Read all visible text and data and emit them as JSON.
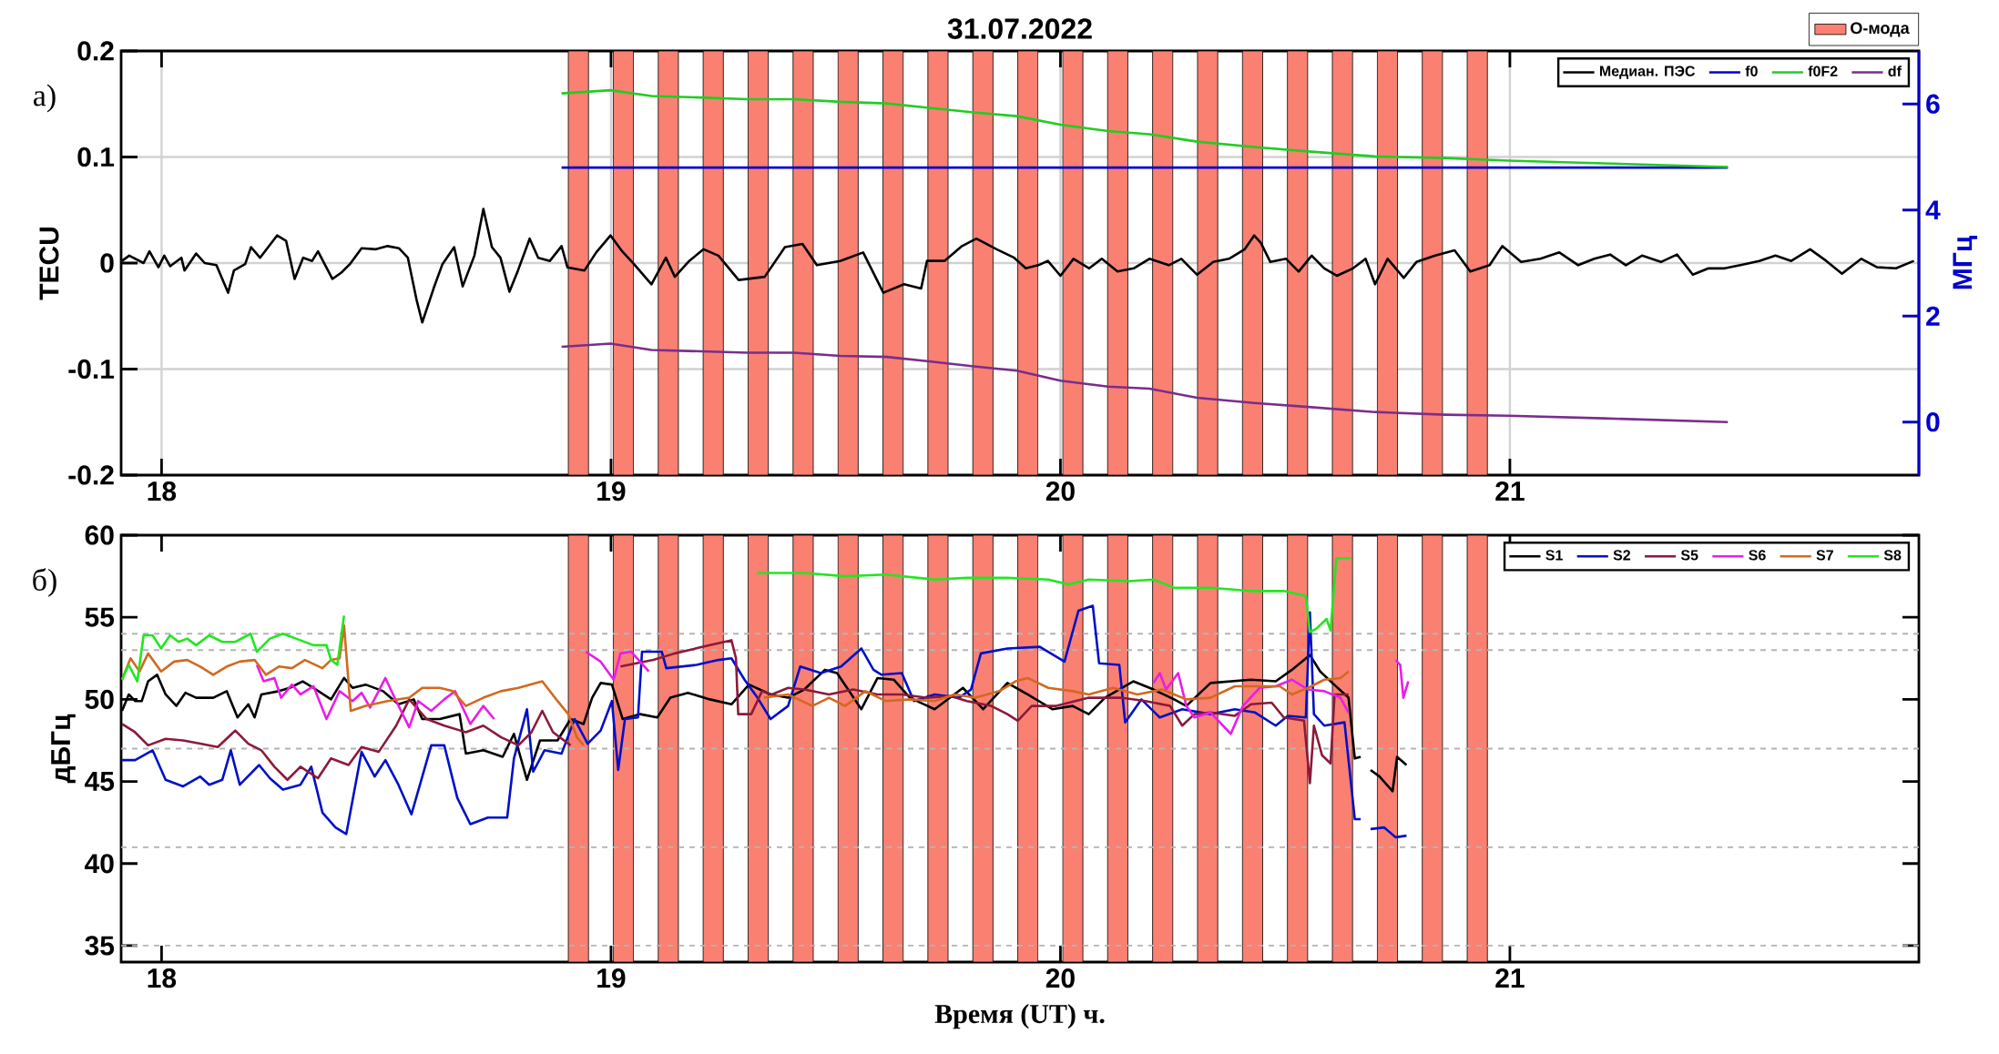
{
  "chart_data": [
    {
      "type": "line",
      "title": "31.07.2022",
      "ylabel": "TECU",
      "y2label": "МГц",
      "xlim": [
        17.91,
        21.91
      ],
      "xticks": [
        18,
        19,
        20,
        21
      ],
      "ylim": [
        -0.2,
        0.2
      ],
      "yticks": [
        -0.2,
        -0.1,
        0,
        0.1,
        0.2
      ],
      "y2lim": [
        -1,
        7
      ],
      "y2ticks": [
        0,
        2,
        4,
        6
      ],
      "grid": true,
      "legend": "top right",
      "annotations": [
        "а)"
      ],
      "series": [
        {
          "name": "Медиан. ПЭС",
          "color": "#000000",
          "x": [
            17.912,
            17.928,
            17.96,
            17.973,
            17.993,
            18.006,
            18.019,
            18.044,
            18.051,
            18.077,
            18.096,
            18.122,
            18.148,
            18.161,
            18.186,
            18.199,
            18.219,
            18.257,
            18.277,
            18.296,
            18.315,
            18.335,
            18.348,
            18.38,
            18.4,
            18.419,
            18.445,
            18.477,
            18.503,
            18.528,
            18.548,
            18.567,
            18.58,
            18.606,
            18.625,
            18.651,
            18.67,
            18.696,
            18.716,
            18.735,
            18.754,
            18.774,
            18.793,
            18.819,
            18.838,
            18.864,
            18.89,
            18.903,
            18.941,
            18.967,
            18.999,
            19.025,
            19.051,
            19.09,
            19.122,
            19.142,
            19.174,
            19.206,
            19.239,
            19.284,
            19.342,
            19.387,
            19.426,
            19.458,
            19.51,
            19.561,
            19.606,
            19.652,
            19.69,
            19.703,
            19.742,
            19.781,
            19.813,
            19.858,
            19.897,
            19.923,
            19.951,
            19.972,
            20.0,
            20.029,
            20.064,
            20.092,
            20.127,
            20.163,
            20.198,
            20.241,
            20.269,
            20.304,
            20.34,
            20.375,
            20.41,
            20.431,
            20.446,
            20.467,
            20.502,
            20.53,
            20.559,
            20.587,
            20.615,
            20.651,
            20.679,
            20.7,
            20.728,
            20.764,
            20.792,
            20.834,
            20.877,
            20.912,
            20.955,
            20.983,
            21.025,
            21.068,
            21.11,
            21.152,
            21.188,
            21.223,
            21.258,
            21.294,
            21.336,
            21.372,
            21.407,
            21.442,
            21.478,
            21.513,
            21.555,
            21.591,
            21.626,
            21.668,
            21.704,
            21.739,
            21.782,
            21.817,
            21.859,
            21.899
          ],
          "values": [
            0.002,
            0.007,
            0,
            0.011,
            -0.004,
            0.007,
            -0.003,
            0.005,
            -0.007,
            0.009,
            0,
            -0.002,
            -0.028,
            -0.007,
            -0.001,
            0.015,
            0.005,
            0.026,
            0.021,
            -0.015,
            0.005,
            0.002,
            0.011,
            -0.015,
            -0.009,
            -0.001,
            0.014,
            0.013,
            0.016,
            0.014,
            0.005,
            -0.034,
            -0.056,
            -0.023,
            -0.001,
            0.015,
            -0.022,
            0.007,
            0.051,
            0.015,
            0.005,
            -0.027,
            -0.007,
            0.023,
            0.005,
            0.002,
            0.016,
            -0.004,
            -0.007,
            0.01,
            0.026,
            0.011,
            -0.001,
            -0.02,
            0.005,
            -0.013,
            0.002,
            0.013,
            0.007,
            -0.016,
            -0.013,
            0.015,
            0.018,
            -0.002,
            0.002,
            0.01,
            -0.028,
            -0.02,
            -0.024,
            0.002,
            0.002,
            0.016,
            0.023,
            0.013,
            0.005,
            -0.005,
            -0.002,
            0.002,
            -0.012,
            0.004,
            -0.005,
            0.004,
            -0.008,
            -0.005,
            0.004,
            -0.002,
            0.004,
            -0.011,
            0.001,
            0.004,
            0.013,
            0.026,
            0.019,
            0.001,
            0.004,
            -0.008,
            0.007,
            -0.005,
            -0.012,
            -0.005,
            0.004,
            -0.02,
            0.004,
            -0.014,
            0.001,
            0.007,
            0.012,
            -0.008,
            -0.002,
            0.016,
            0.001,
            0.004,
            0.01,
            -0.002,
            0.004,
            0.008,
            -0.002,
            0.007,
            0.001,
            0.008,
            -0.011,
            -0.005,
            -0.005,
            -0.002,
            0.002,
            0.007,
            0.002,
            0.013,
            0.002,
            -0.01,
            0.004,
            -0.004,
            -0.005,
            0.002
          ]
        },
        {
          "name": "f0",
          "color": "#0000cc",
          "axis": "y2",
          "x": [
            18.89,
            21.485
          ],
          "values": [
            4.8,
            4.8
          ]
        },
        {
          "name": "f0F2",
          "color": "#22cc22",
          "axis": "y2",
          "x": [
            18.89,
            18.999,
            19.09,
            19.174,
            19.303,
            19.406,
            19.51,
            19.613,
            19.703,
            19.807,
            19.903,
            20.0,
            20.106,
            20.198,
            20.304,
            20.431,
            20.545,
            20.7,
            20.856,
            20.997,
            21.209,
            21.485
          ],
          "values": [
            6.2,
            6.26,
            6.15,
            6.13,
            6.09,
            6.09,
            6.04,
            6.01,
            5.93,
            5.84,
            5.77,
            5.61,
            5.49,
            5.43,
            5.29,
            5.19,
            5.11,
            5.01,
            4.98,
            4.93,
            4.88,
            4.81
          ]
        },
        {
          "name": "df",
          "color": "#7b2d8b",
          "axis": "y2",
          "x": [
            18.89,
            18.999,
            19.09,
            19.303,
            19.406,
            19.51,
            19.613,
            19.703,
            19.807,
            19.903,
            20.0,
            20.106,
            20.198,
            20.304,
            20.431,
            20.545,
            20.7,
            20.856,
            20.997,
            21.209,
            21.485
          ],
          "values": [
            1.42,
            1.48,
            1.36,
            1.31,
            1.31,
            1.25,
            1.23,
            1.15,
            1.05,
            0.97,
            0.78,
            0.67,
            0.63,
            0.46,
            0.36,
            0.29,
            0.19,
            0.14,
            0.12,
            0.07,
            0.0
          ]
        }
      ],
      "bands": [
        {
          "axis": "x",
          "from": 18.905,
          "to": 18.95,
          "color": "#fa8072",
          "label": "О-мода"
        },
        {
          "axis": "x",
          "from": 19.005,
          "to": 19.05,
          "color": "#fa8072"
        },
        {
          "axis": "x",
          "from": 19.105,
          "to": 19.15,
          "color": "#fa8072"
        },
        {
          "axis": "x",
          "from": 19.205,
          "to": 19.25,
          "color": "#fa8072"
        },
        {
          "axis": "x",
          "from": 19.305,
          "to": 19.35,
          "color": "#fa8072"
        },
        {
          "axis": "x",
          "from": 19.405,
          "to": 19.45,
          "color": "#fa8072"
        },
        {
          "axis": "x",
          "from": 19.505,
          "to": 19.55,
          "color": "#fa8072"
        },
        {
          "axis": "x",
          "from": 19.605,
          "to": 19.65,
          "color": "#fa8072"
        },
        {
          "axis": "x",
          "from": 19.705,
          "to": 19.75,
          "color": "#fa8072"
        },
        {
          "axis": "x",
          "from": 19.805,
          "to": 19.85,
          "color": "#fa8072"
        },
        {
          "axis": "x",
          "from": 19.905,
          "to": 19.95,
          "color": "#fa8072"
        },
        {
          "axis": "x",
          "from": 20.005,
          "to": 20.05,
          "color": "#fa8072"
        },
        {
          "axis": "x",
          "from": 20.105,
          "to": 20.15,
          "color": "#fa8072"
        },
        {
          "axis": "x",
          "from": 20.205,
          "to": 20.25,
          "color": "#fa8072"
        },
        {
          "axis": "x",
          "from": 20.305,
          "to": 20.35,
          "color": "#fa8072"
        },
        {
          "axis": "x",
          "from": 20.405,
          "to": 20.45,
          "color": "#fa8072"
        },
        {
          "axis": "x",
          "from": 20.505,
          "to": 20.55,
          "color": "#fa8072"
        },
        {
          "axis": "x",
          "from": 20.605,
          "to": 20.65,
          "color": "#fa8072"
        },
        {
          "axis": "x",
          "from": 20.705,
          "to": 20.75,
          "color": "#fa8072"
        },
        {
          "axis": "x",
          "from": 20.805,
          "to": 20.85,
          "color": "#fa8072"
        },
        {
          "axis": "x",
          "from": 20.905,
          "to": 20.95,
          "color": "#fa8072"
        }
      ]
    },
    {
      "type": "line",
      "xlabel": "Время (UT) ч.",
      "ylabel": "дБГц",
      "xlim": [
        17.91,
        21.91
      ],
      "xticks": [
        18,
        19,
        20,
        21
      ],
      "ylim": [
        34,
        60
      ],
      "yticks": [
        35,
        40,
        45,
        50,
        55,
        60
      ],
      "legend": "top right",
      "annotations": [
        "б)"
      ],
      "ref_lines": [
        {
          "axis": "y",
          "value": 54,
          "color": "#b4b4b4",
          "line_style": "dashed"
        },
        {
          "axis": "y",
          "value": 53,
          "color": "#b4b4b4",
          "line_style": "dashed"
        },
        {
          "axis": "y",
          "value": 47,
          "color": "#b4b4b4",
          "line_style": "dashed"
        },
        {
          "axis": "y",
          "value": 41,
          "color": "#b4b4b4",
          "line_style": "dashed"
        },
        {
          "axis": "y",
          "value": 35,
          "color": "#b4b4b4",
          "line_style": "dashed"
        }
      ],
      "series": [
        {
          "name": "S1",
          "color": "#000000",
          "x": [
            17.912,
            17.927,
            17.941,
            17.956,
            17.97,
            17.99,
            18.009,
            18.033,
            18.053,
            18.077,
            18.115,
            18.145,
            18.169,
            18.193,
            18.207,
            18.222,
            18.261,
            18.285,
            18.314,
            18.338,
            18.377,
            18.406,
            18.425,
            18.454,
            18.493,
            18.527,
            18.561,
            18.58,
            18.619,
            18.663,
            18.677,
            18.716,
            18.759,
            18.784,
            18.813,
            18.842,
            18.881,
            18.91,
            18.939,
            18.958,
            18.977,
            19.002,
            19.026,
            19.065,
            19.103,
            19.132,
            19.171,
            19.22,
            19.268,
            19.307,
            19.355,
            19.394,
            19.43,
            19.476,
            19.503,
            19.557,
            19.593,
            19.629,
            19.665,
            19.72,
            19.783,
            19.828,
            19.882,
            19.927,
            19.982,
            20.027,
            20.063,
            20.099,
            20.162,
            20.207,
            20.253,
            20.28,
            20.334,
            20.379,
            20.424,
            20.479,
            20.515,
            20.555,
            20.578,
            20.605,
            20.641,
            20.655,
            20.668,
            20.679,
            20.69,
            20.71,
            20.739,
            20.749,
            20.77
          ],
          "values": [
            49.3,
            50.3,
            49.9,
            49.9,
            51.1,
            51.5,
            50.3,
            49.6,
            50.4,
            50.1,
            50.1,
            50.5,
            48.9,
            49.7,
            48.9,
            50.3,
            50.5,
            50.7,
            51.1,
            50.7,
            50.0,
            51.3,
            50.7,
            50.9,
            50.5,
            49.7,
            50.0,
            48.8,
            48.8,
            49.1,
            46.7,
            46.9,
            46.5,
            47.9,
            45.1,
            47.5,
            47.5,
            48.8,
            48.5,
            50.1,
            51.0,
            50.9,
            48.8,
            49.1,
            48.9,
            50.1,
            50.4,
            50.0,
            49.7,
            50.9,
            50.3,
            50.1,
            50.6,
            51.8,
            51.6,
            49.4,
            51.3,
            51.2,
            50.1,
            49.4,
            50.7,
            49.4,
            51.0,
            50.3,
            49.4,
            49.6,
            49.1,
            50.1,
            51.1,
            50.6,
            50.0,
            49.6,
            51.0,
            51.1,
            51.2,
            51.1,
            51.8,
            52.7,
            51.7,
            51.0,
            50.1,
            46.4,
            46.5,
            null,
            45.7,
            45.3,
            44.4,
            46.5,
            46.0
          ]
        },
        {
          "name": "S2",
          "color": "#0010c8",
          "x": [
            17.912,
            17.941,
            17.98,
            18.009,
            18.048,
            18.086,
            18.106,
            18.135,
            18.154,
            18.174,
            18.217,
            18.241,
            18.27,
            18.309,
            18.333,
            18.358,
            18.387,
            18.411,
            18.445,
            18.474,
            18.498,
            18.527,
            18.556,
            18.6,
            18.629,
            18.658,
            18.687,
            18.726,
            18.769,
            18.784,
            18.813,
            18.827,
            18.852,
            18.89,
            18.919,
            18.948,
            18.977,
            19.002,
            19.016,
            19.031,
            19.06,
            19.069,
            19.113,
            19.123,
            19.19,
            19.239,
            19.268,
            19.297,
            19.326,
            19.355,
            19.394,
            19.421,
            19.467,
            19.512,
            19.557,
            19.584,
            19.602,
            19.647,
            19.674,
            19.72,
            19.774,
            19.801,
            19.823,
            19.882,
            19.954,
            20.009,
            20.04,
            20.072,
            20.086,
            20.131,
            20.144,
            20.18,
            20.221,
            20.271,
            20.334,
            20.388,
            20.433,
            20.479,
            20.506,
            20.546,
            20.555,
            20.564,
            20.587,
            20.632,
            20.655,
            20.668,
            20.679,
            20.69,
            20.72,
            20.746,
            20.77
          ],
          "values": [
            46.3,
            46.3,
            46.9,
            45.1,
            44.7,
            45.3,
            44.8,
            45.1,
            46.9,
            44.8,
            46.0,
            45.2,
            44.5,
            44.8,
            45.9,
            43.1,
            42.2,
            41.8,
            46.8,
            45.3,
            46.3,
            44.8,
            43.0,
            47.2,
            47.2,
            44.0,
            42.4,
            42.8,
            42.8,
            46.4,
            49.4,
            45.6,
            46.9,
            46.7,
            48.8,
            47.3,
            48.1,
            49.9,
            45.7,
            48.8,
            48.9,
            52.9,
            52.9,
            51.9,
            52.1,
            52.4,
            52.5,
            51.2,
            50.1,
            48.8,
            49.6,
            52.0,
            51.6,
            52.0,
            53.1,
            51.8,
            51.5,
            51.6,
            49.9,
            50.3,
            50.1,
            50.6,
            52.8,
            53.1,
            53.2,
            52.3,
            55.4,
            55.7,
            52.2,
            52.1,
            48.6,
            50.0,
            48.9,
            49.4,
            49.1,
            49.4,
            49.2,
            48.4,
            49.0,
            48.9,
            55.3,
            49.1,
            48.4,
            48.6,
            42.7,
            42.7,
            null,
            42.1,
            42.2,
            41.6,
            41.7
          ]
        },
        {
          "name": "S5",
          "color": "#8b1a3a",
          "x": [
            17.912,
            17.941,
            17.97,
            18.009,
            18.048,
            18.086,
            18.125,
            18.164,
            18.193,
            18.222,
            18.251,
            18.28,
            18.309,
            18.348,
            18.377,
            18.416,
            18.445,
            18.483,
            18.522,
            18.551,
            18.59,
            18.629,
            18.677,
            18.716,
            18.755,
            18.794,
            18.823,
            18.847,
            18.871,
            18.91,
            18.97,
            19.021,
            19.094,
            19.142,
            19.22,
            19.268,
            19.278,
            19.283,
            19.312,
            19.336,
            19.358,
            19.394,
            19.43,
            19.485,
            19.539,
            19.593,
            19.647,
            19.701,
            19.756,
            19.792,
            19.846,
            19.882,
            19.905,
            19.936,
            19.991,
            20.063,
            20.135,
            20.189,
            20.244,
            20.271,
            20.298,
            20.334,
            20.388,
            20.424,
            20.47,
            20.497,
            20.542,
            20.555,
            20.564,
            20.582,
            20.601,
            20.61,
            20.641
          ],
          "values": [
            48.5,
            48.0,
            47.2,
            47.6,
            47.5,
            47.3,
            47.1,
            48.1,
            47.3,
            46.9,
            45.9,
            45.1,
            45.9,
            45.2,
            46.4,
            46.0,
            47.1,
            46.8,
            48.4,
            50.0,
            48.8,
            48.4,
            48.0,
            48.4,
            47.7,
            47.2,
            48.0,
            49.3,
            48.0,
            47.2,
            null,
            52.0,
            52.4,
            52.8,
            53.3,
            53.6,
            52.5,
            49.1,
            49.1,
            50.5,
            50.3,
            50.7,
            50.6,
            50.3,
            50.6,
            50.3,
            50.3,
            50.1,
            50.2,
            49.9,
            49.6,
            49.1,
            48.7,
            49.6,
            49.6,
            50.1,
            50.1,
            49.9,
            49.6,
            48.4,
            49.1,
            49.2,
            49.0,
            49.7,
            49.8,
            48.9,
            48.7,
            44.9,
            48.4,
            46.6,
            46.1,
            50.3,
            50.3
          ]
        },
        {
          "name": "S6",
          "color": "#e81ee8",
          "x": [
            18.212,
            18.227,
            18.251,
            18.266,
            18.29,
            18.309,
            18.338,
            18.367,
            18.396,
            18.425,
            18.445,
            18.464,
            18.498,
            18.522,
            18.551,
            18.571,
            18.6,
            18.629,
            18.653,
            18.687,
            18.716,
            18.74,
            18.85,
            18.944,
            18.977,
            19.006,
            19.021,
            19.045,
            19.084,
            19.6,
            20.207,
            20.221,
            20.235,
            20.262,
            20.28,
            20.298,
            20.334,
            20.379,
            20.406,
            20.443,
            20.479,
            20.515,
            20.551,
            20.587,
            20.623,
            20.641,
            20.7,
            20.746,
            20.756,
            20.763,
            20.774
          ],
          "values": [
            52.1,
            51.1,
            51.3,
            50.1,
            50.9,
            50.3,
            50.8,
            48.8,
            50.5,
            49.9,
            50.4,
            49.5,
            51.3,
            49.9,
            48.3,
            49.9,
            49.3,
            50.0,
            50.5,
            48.5,
            49.6,
            48.8,
            null,
            52.9,
            52.3,
            51.2,
            52.8,
            52.9,
            51.7,
            null,
            51.0,
            51.6,
            50.6,
            51.6,
            49.6,
            48.9,
            49.2,
            47.9,
            49.6,
            50.7,
            50.8,
            51.2,
            50.6,
            50.5,
            50.1,
            49.2,
            null,
            52.4,
            52.1,
            50.1,
            51.1
          ]
        },
        {
          "name": "S7",
          "color": "#d2691e",
          "x": [
            17.912,
            17.931,
            17.951,
            17.97,
            17.999,
            18.028,
            18.057,
            18.086,
            18.115,
            18.145,
            18.174,
            18.207,
            18.232,
            18.261,
            18.29,
            18.319,
            18.358,
            18.377,
            18.396,
            18.406,
            18.421,
            18.454,
            18.503,
            18.551,
            18.58,
            18.619,
            18.648,
            18.677,
            18.716,
            18.755,
            18.794,
            18.847,
            18.881,
            18.905,
            18.924,
            18.939,
            19.1,
            19.34,
            19.394,
            19.448,
            19.485,
            19.521,
            19.566,
            19.611,
            19.665,
            19.72,
            19.765,
            19.81,
            19.864,
            19.9,
            19.927,
            19.973,
            20.027,
            20.063,
            20.117,
            20.171,
            20.226,
            20.28,
            20.334,
            20.388,
            20.443,
            20.488,
            20.515,
            20.551,
            20.587,
            20.623,
            20.641
          ],
          "values": [
            51.2,
            52.5,
            51.7,
            52.8,
            51.7,
            52.3,
            52.4,
            52.0,
            51.5,
            52.0,
            52.3,
            52.4,
            51.5,
            52.0,
            51.9,
            52.4,
            51.9,
            52.4,
            52.5,
            54.5,
            49.3,
            49.6,
            49.9,
            50.1,
            50.7,
            50.7,
            50.5,
            49.6,
            50.1,
            50.5,
            50.7,
            51.1,
            49.9,
            49.1,
            47.7,
            47.2,
            null,
            50.1,
            50.3,
            49.6,
            50.1,
            49.6,
            50.5,
            49.9,
            50.0,
            49.9,
            50.3,
            50.1,
            50.5,
            51.1,
            51.3,
            50.7,
            50.5,
            50.3,
            50.7,
            50.3,
            50.6,
            50.0,
            50.1,
            50.8,
            50.8,
            50.8,
            50.3,
            50.7,
            51.2,
            51.3,
            51.7
          ]
        },
        {
          "name": "S8",
          "color": "#22e622",
          "x": [
            17.912,
            17.927,
            17.946,
            17.96,
            17.98,
            17.999,
            18.019,
            18.038,
            18.057,
            18.077,
            18.106,
            18.135,
            18.164,
            18.198,
            18.212,
            18.241,
            18.27,
            18.299,
            18.338,
            18.367,
            18.377,
            18.391,
            18.406,
            18.9,
            19.326,
            19.43,
            19.521,
            19.611,
            19.72,
            19.792,
            19.882,
            19.973,
            20.018,
            20.063,
            20.153,
            20.207,
            20.253,
            20.334,
            20.424,
            20.497,
            20.546,
            20.555,
            20.569,
            20.592,
            20.601,
            20.614,
            20.646
          ],
          "values": [
            51.2,
            52.1,
            51.1,
            53.9,
            53.9,
            53.1,
            53.9,
            53.5,
            53.7,
            53.3,
            53.9,
            53.5,
            53.5,
            54.0,
            52.9,
            53.7,
            54.0,
            53.7,
            53.3,
            53.3,
            52.4,
            52.1,
            55.1,
            null,
            57.7,
            57.7,
            57.5,
            57.6,
            57.3,
            57.4,
            57.4,
            57.3,
            57.0,
            57.3,
            57.2,
            57.3,
            56.8,
            56.8,
            56.6,
            56.6,
            56.3,
            54.1,
            54.3,
            54.9,
            54.2,
            58.6,
            58.6
          ]
        }
      ],
      "bands": [
        {
          "axis": "x",
          "from": 18.905,
          "to": 18.95,
          "color": "#fa8072"
        },
        {
          "axis": "x",
          "from": 19.005,
          "to": 19.05,
          "color": "#fa8072"
        },
        {
          "axis": "x",
          "from": 19.105,
          "to": 19.15,
          "color": "#fa8072"
        },
        {
          "axis": "x",
          "from": 19.205,
          "to": 19.25,
          "color": "#fa8072"
        },
        {
          "axis": "x",
          "from": 19.305,
          "to": 19.35,
          "color": "#fa8072"
        },
        {
          "axis": "x",
          "from": 19.405,
          "to": 19.45,
          "color": "#fa8072"
        },
        {
          "axis": "x",
          "from": 19.505,
          "to": 19.55,
          "color": "#fa8072"
        },
        {
          "axis": "x",
          "from": 19.605,
          "to": 19.65,
          "color": "#fa8072"
        },
        {
          "axis": "x",
          "from": 19.705,
          "to": 19.75,
          "color": "#fa8072"
        },
        {
          "axis": "x",
          "from": 19.805,
          "to": 19.85,
          "color": "#fa8072"
        },
        {
          "axis": "x",
          "from": 19.905,
          "to": 19.95,
          "color": "#fa8072"
        },
        {
          "axis": "x",
          "from": 20.005,
          "to": 20.05,
          "color": "#fa8072"
        },
        {
          "axis": "x",
          "from": 20.105,
          "to": 20.15,
          "color": "#fa8072"
        },
        {
          "axis": "x",
          "from": 20.205,
          "to": 20.25,
          "color": "#fa8072"
        },
        {
          "axis": "x",
          "from": 20.305,
          "to": 20.35,
          "color": "#fa8072"
        },
        {
          "axis": "x",
          "from": 20.405,
          "to": 20.45,
          "color": "#fa8072"
        },
        {
          "axis": "x",
          "from": 20.505,
          "to": 20.55,
          "color": "#fa8072"
        },
        {
          "axis": "x",
          "from": 20.605,
          "to": 20.65,
          "color": "#fa8072"
        },
        {
          "axis": "x",
          "from": 20.705,
          "to": 20.75,
          "color": "#fa8072"
        },
        {
          "axis": "x",
          "from": 20.805,
          "to": 20.85,
          "color": "#fa8072"
        },
        {
          "axis": "x",
          "from": 20.905,
          "to": 20.95,
          "color": "#fa8072"
        }
      ]
    }
  ]
}
